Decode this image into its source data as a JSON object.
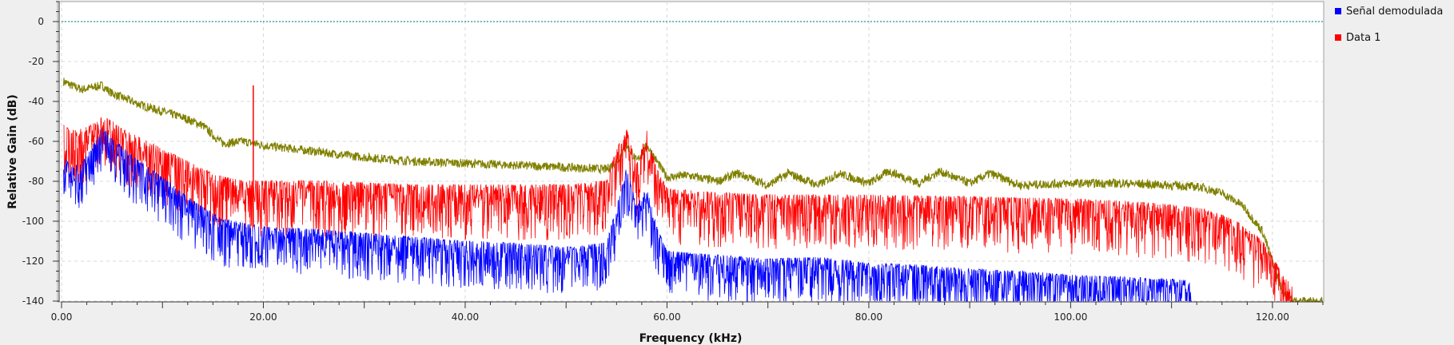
{
  "chart_data": {
    "type": "line",
    "title": "",
    "xlabel": "Frequency (kHz)",
    "ylabel": "Relative Gain (dB)",
    "xlim": [
      0,
      125
    ],
    "ylim": [
      -140,
      10
    ],
    "x_ticks": [
      0,
      20,
      40,
      60,
      80,
      100,
      120
    ],
    "x_tick_labels": [
      "0.00",
      "20.00",
      "40.00",
      "60.00",
      "80.00",
      "100.00",
      "120.00"
    ],
    "y_ticks": [
      0,
      -20,
      -40,
      -60,
      -80,
      -100,
      -120,
      -140
    ],
    "y_tick_labels": [
      "0",
      "-20",
      "-40",
      "-60",
      "-80",
      "-100",
      "-120",
      "-140"
    ],
    "grid": true,
    "legend_position": "right",
    "reference_line": {
      "y": 0,
      "color": "#1f9a9a"
    },
    "series": [
      {
        "name": "Señal demodulada",
        "color": "#0000ff",
        "x": [
          0.2,
          1,
          2,
          3,
          4,
          5,
          6,
          8,
          10,
          12,
          14,
          16,
          18,
          20,
          25,
          30,
          35,
          40,
          45,
          50,
          54,
          55,
          56,
          57,
          58,
          59,
          60,
          65,
          70,
          75,
          80,
          85,
          90,
          95,
          100,
          105,
          110,
          112
        ],
        "values": [
          -75,
          -80,
          -78,
          -70,
          -60,
          -65,
          -70,
          -78,
          -85,
          -93,
          -100,
          -106,
          -108,
          -110,
          -111,
          -113,
          -115,
          -117,
          -118,
          -120,
          -118,
          -100,
          -80,
          -100,
          -90,
          -110,
          -122,
          -124,
          -126,
          -125,
          -128,
          -129,
          -131,
          -132,
          -134,
          -135,
          -136,
          -137
        ]
      },
      {
        "name": "Data 1",
        "color": "#ff0000",
        "x": [
          0.2,
          1,
          2,
          3,
          4,
          5,
          6,
          8,
          10,
          12,
          14,
          16,
          18,
          20,
          25,
          30,
          35,
          40,
          45,
          50,
          54,
          55,
          56,
          57,
          58,
          59,
          60,
          65,
          70,
          80,
          90,
          100,
          105,
          110,
          113,
          115,
          117,
          119,
          120,
          121,
          122
        ],
        "values": [
          -60,
          -63,
          -62,
          -60,
          -56,
          -58,
          -62,
          -67,
          -72,
          -77,
          -82,
          -86,
          -88,
          -88,
          -88,
          -89,
          -90,
          -90,
          -90,
          -90,
          -88,
          -72,
          -62,
          -80,
          -63,
          -82,
          -92,
          -94,
          -95,
          -95,
          -96,
          -97,
          -98,
          -100,
          -102,
          -105,
          -110,
          -118,
          -126,
          -135,
          -140
        ]
      },
      {
        "color": "#808000",
        "x": [
          0.2,
          1,
          2,
          3,
          4,
          5,
          6,
          8,
          10,
          12,
          14,
          15,
          16,
          18,
          20,
          25,
          30,
          35,
          40,
          45,
          50,
          54,
          55,
          56,
          57,
          58,
          59,
          60,
          62,
          65,
          67,
          70,
          72,
          75,
          77,
          80,
          82,
          85,
          87,
          90,
          92,
          95,
          100,
          105,
          110,
          113,
          115,
          117,
          119,
          120,
          121,
          122,
          125
        ],
        "values": [
          -30,
          -32,
          -34,
          -33,
          -32,
          -36,
          -38,
          -42,
          -45,
          -48,
          -52,
          -57,
          -61,
          -60,
          -62,
          -65,
          -68,
          -70,
          -71,
          -72,
          -73,
          -74,
          -70,
          -62,
          -70,
          -62,
          -70,
          -78,
          -77,
          -80,
          -76,
          -82,
          -76,
          -82,
          -76,
          -81,
          -75,
          -81,
          -75,
          -81,
          -76,
          -82,
          -81,
          -81,
          -82,
          -83,
          -86,
          -92,
          -105,
          -120,
          -135,
          -140,
          -140
        ]
      }
    ]
  },
  "legend": {
    "items": [
      {
        "label": "Señal demodulada",
        "color": "#0000ff"
      },
      {
        "label": "Data 1",
        "color": "#ff0000"
      }
    ]
  }
}
